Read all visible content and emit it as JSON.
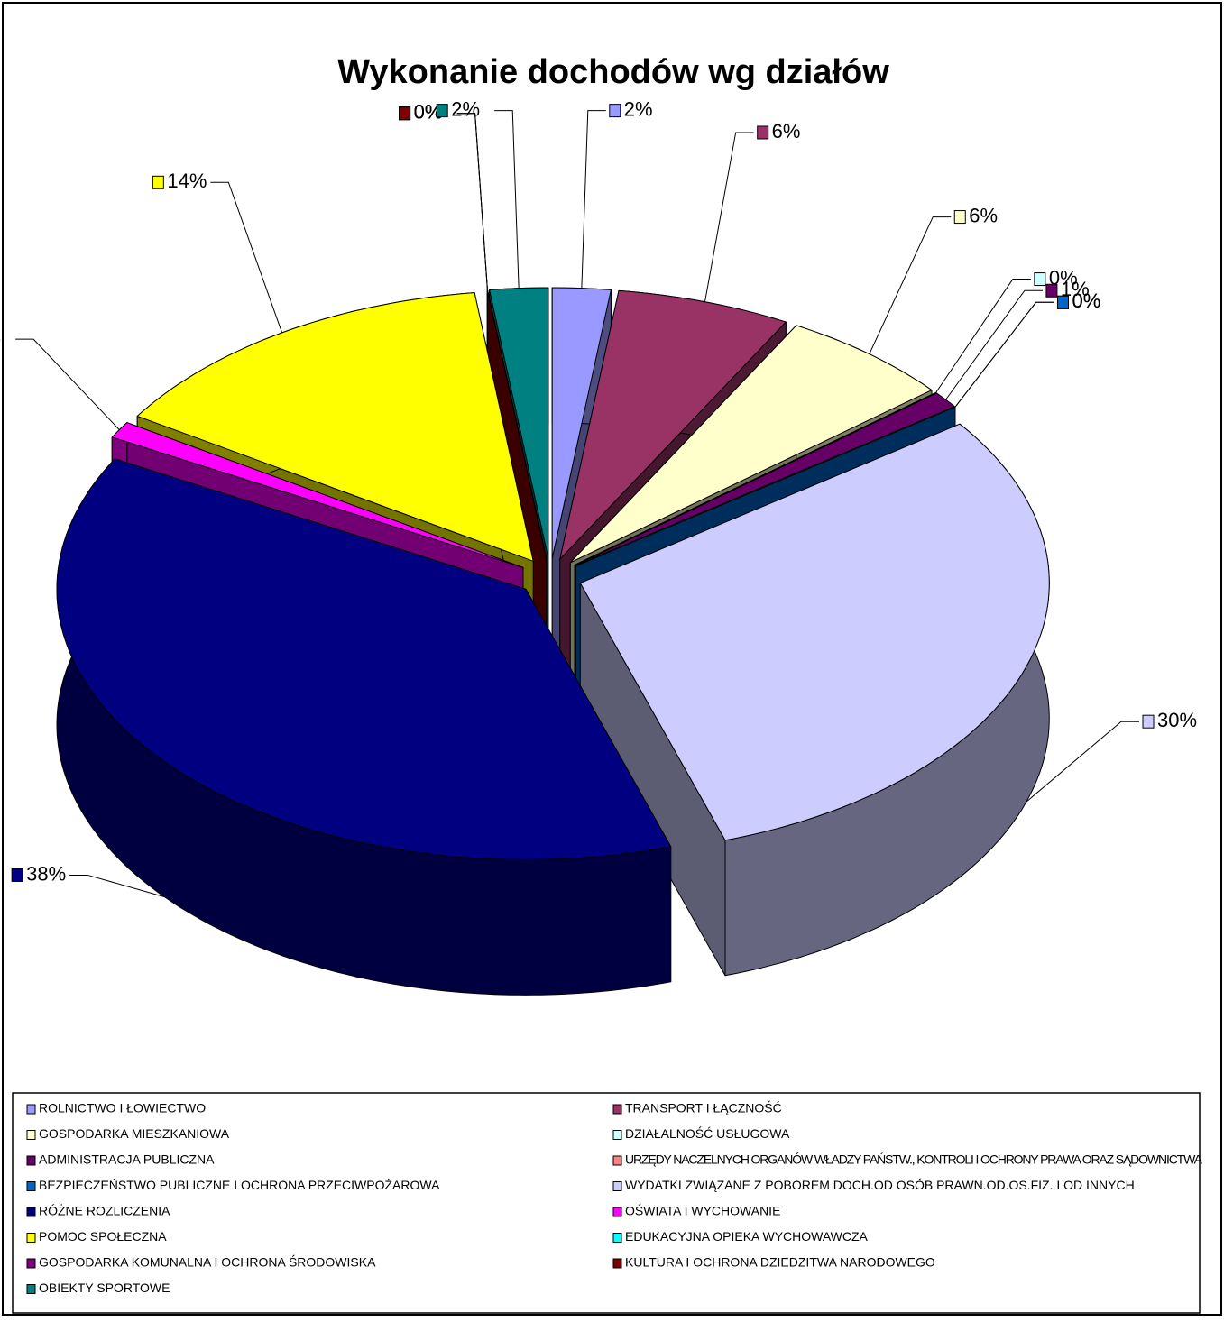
{
  "chart_data": {
    "type": "pie3d",
    "title": "Wykonanie dochodów wg działów",
    "categories": [
      "ROLNICTWO I ŁOWIECTWO",
      "TRANSPORT I ŁĄCZNOŚĆ",
      "GOSPODARKA MIESZKANIOWA",
      "DZIAŁALNOŚĆ USŁUGOWA",
      "ADMINISTRACJA PUBLICZNA",
      "URZĘDY NACZELNYCH ORGANÓW WŁADZY PAŃSTW., KONTROLI I OCHRONY PRAWA ORAZ SĄDOWNICTWA",
      "BEZPIECZEŃSTWO PUBLICZNE I OCHRONA PRZECIWPOŻAROWA",
      "WYDATKI ZWIĄZANE Z POBOREM DOCH.OD OSÓB PRAWN.OD.OS.FIZ. I OD INNYCH",
      "RÓŻNE ROZLICZENIA",
      "OŚWIATA I WYCHOWANIE",
      "POMOC SPOŁECZNA",
      "EDUKACYJNA OPIEKA WYCHOWAWCZA",
      "GOSPODARKA KOMUNALNA I OCHRONA ŚRODOWISKA",
      "KULTURA I OCHRONA DZIEDZITWA NARODOWEGO",
      "OBIEKTY SPORTOWE"
    ],
    "values": [
      2,
      6,
      6,
      0,
      1,
      0,
      0,
      30,
      38,
      1,
      14,
      0,
      0,
      0,
      2
    ],
    "value_labels": [
      "2%",
      "6%",
      "6%",
      "0%",
      "1%",
      "0%",
      "0%",
      "30%",
      "38%",
      "1%",
      "14%",
      "0%",
      "0%",
      "0%",
      "2%"
    ],
    "colors": [
      "#9999ff",
      "#993366",
      "#ffffcc",
      "#ccffff",
      "#660066",
      "#ff8080",
      "#0066cc",
      "#ccccff",
      "#000080",
      "#ff00ff",
      "#ffff00",
      "#00ffff",
      "#800080",
      "#800000",
      "#008080"
    ],
    "legend": "bottom"
  }
}
